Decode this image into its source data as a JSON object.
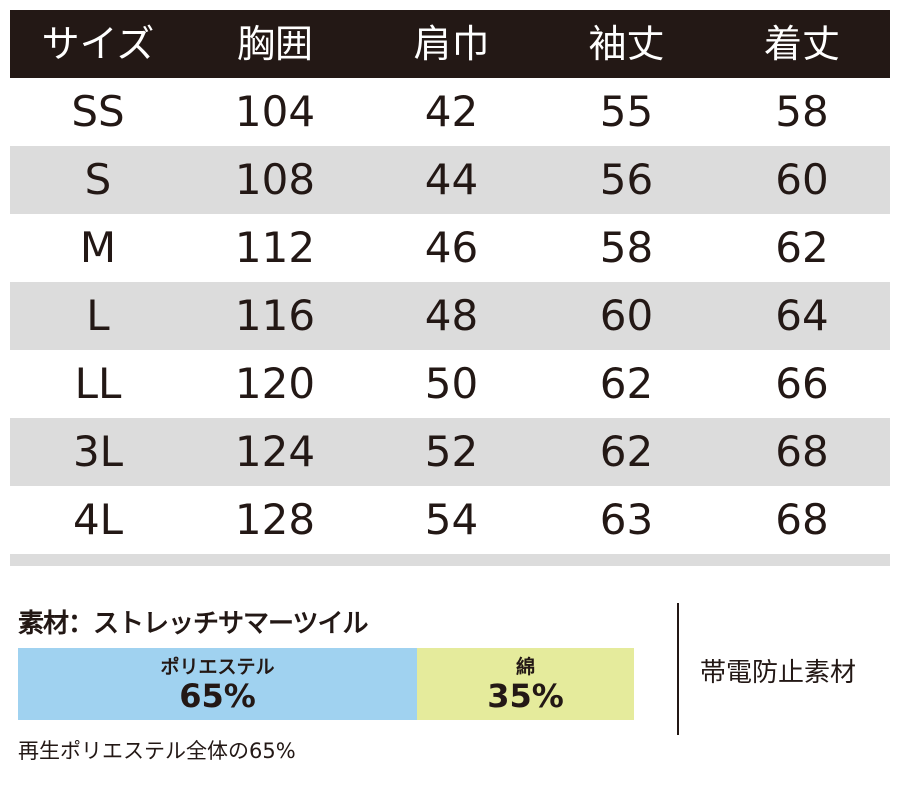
{
  "table": {
    "headers": [
      "サイズ",
      "胸囲",
      "肩巾",
      "袖丈",
      "着丈"
    ],
    "rows": [
      [
        "SS",
        "104",
        "42",
        "55",
        "58"
      ],
      [
        "S",
        "108",
        "44",
        "56",
        "60"
      ],
      [
        "M",
        "112",
        "46",
        "58",
        "62"
      ],
      [
        "L",
        "116",
        "48",
        "60",
        "64"
      ],
      [
        "LL",
        "120",
        "50",
        "62",
        "66"
      ],
      [
        "3L",
        "124",
        "52",
        "62",
        "68"
      ],
      [
        "4L",
        "128",
        "54",
        "63",
        "68"
      ]
    ]
  },
  "material": {
    "title": "素材：ストレッチサマーツイル",
    "components": [
      {
        "label": "ポリエステル",
        "percent_text": "65%",
        "percent": 65,
        "color": "#a0d2f0"
      },
      {
        "label": "綿",
        "percent_text": "35%",
        "percent": 35,
        "color": "#e5eb9c"
      }
    ],
    "feature": "帯電防止素材",
    "note": "再生ポリエステル全体の65%"
  },
  "colors": {
    "header_bg": "#231815",
    "alt_row_bg": "#dcdcdc"
  }
}
